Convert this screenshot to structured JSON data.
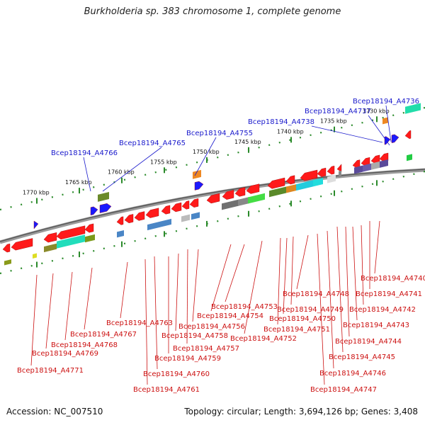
{
  "header": {
    "title": "Burkholderia sp. 383 chromosome 1, complete genome"
  },
  "footer": {
    "accession": "Accession: NC_007510",
    "topology": "Topology: circular; Length: 3,694,126 bp; Genes: 3,408"
  },
  "colors": {
    "gene_forward": "#1a1aff",
    "gene_reverse": "#ff1a1a",
    "label_top": "#1a1acc",
    "label_bottom": "#cc1111",
    "backbone": "#808080",
    "ticks": "#2a8a2a"
  },
  "scale": {
    "ticks": [
      {
        "label": "1730 kbp",
        "kb": 1730
      },
      {
        "label": "1735 kbp",
        "kb": 1735
      },
      {
        "label": "1740 kbp",
        "kb": 1740
      },
      {
        "label": "1745 kbp",
        "kb": 1745
      },
      {
        "label": "1750 kbp",
        "kb": 1750
      },
      {
        "label": "1755 kbp",
        "kb": 1755
      },
      {
        "label": "1760 kbp",
        "kb": 1760
      },
      {
        "label": "1765 kbp",
        "kb": 1765
      },
      {
        "label": "1770 kbp",
        "kb": 1770
      }
    ]
  },
  "genes_top": [
    {
      "label": "Bcep18194_A4736"
    },
    {
      "label": "Bcep18194_A4737"
    },
    {
      "label": "Bcep18194_A4738"
    },
    {
      "label": "Bcep18194_A4755"
    },
    {
      "label": "Bcep18194_A4765"
    },
    {
      "label": "Bcep18194_A4766"
    }
  ],
  "genes_bottom": [
    {
      "label": "Bcep18194_A4740"
    },
    {
      "label": "Bcep18194_A4741"
    },
    {
      "label": "Bcep18194_A4742"
    },
    {
      "label": "Bcep18194_A4743"
    },
    {
      "label": "Bcep18194_A4744"
    },
    {
      "label": "Bcep18194_A4745"
    },
    {
      "label": "Bcep18194_A4746"
    },
    {
      "label": "Bcep18194_A4747"
    },
    {
      "label": "Bcep18194_A4748"
    },
    {
      "label": "Bcep18194_A4749"
    },
    {
      "label": "Bcep18194_A4750"
    },
    {
      "label": "Bcep18194_A4751"
    },
    {
      "label": "Bcep18194_A4752"
    },
    {
      "label": "Bcep18194_A4753"
    },
    {
      "label": "Bcep18194_A4754"
    },
    {
      "label": "Bcep18194_A4756"
    },
    {
      "label": "Bcep18194_A4757"
    },
    {
      "label": "Bcep18194_A4758"
    },
    {
      "label": "Bcep18194_A4759"
    },
    {
      "label": "Bcep18194_A4760"
    },
    {
      "label": "Bcep18194_A4761"
    },
    {
      "label": "Bcep18194_A4763"
    },
    {
      "label": "Bcep18194_A4767"
    },
    {
      "label": "Bcep18194_A4768"
    },
    {
      "label": "Bcep18194_A4769"
    },
    {
      "label": "Bcep18194_A4771"
    }
  ]
}
